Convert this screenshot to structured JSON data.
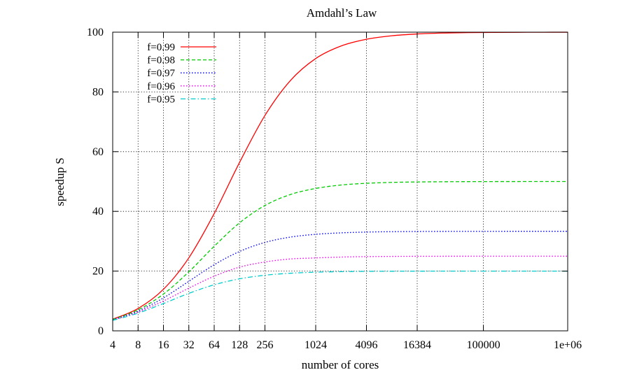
{
  "chart_data": {
    "type": "line",
    "title": "Amdahl’s Law",
    "xlabel": "number of cores",
    "ylabel": "speedup S",
    "x_scale": "log2",
    "xlim": [
      4,
      1000000
    ],
    "ylim": [
      0,
      100
    ],
    "grid": true,
    "legend_position": "top-left",
    "x_ticks": [
      {
        "value": 4,
        "label": "4"
      },
      {
        "value": 8,
        "label": "8"
      },
      {
        "value": 16,
        "label": "16"
      },
      {
        "value": 32,
        "label": "32"
      },
      {
        "value": 64,
        "label": "64"
      },
      {
        "value": 128,
        "label": "128"
      },
      {
        "value": 256,
        "label": "256"
      },
      {
        "value": 1024,
        "label": "1024"
      },
      {
        "value": 4096,
        "label": "4096"
      },
      {
        "value": 16384,
        "label": "16384"
      },
      {
        "value": 100000,
        "label": "100000"
      },
      {
        "value": 1000000,
        "label": "1e+06"
      }
    ],
    "y_ticks": [
      {
        "value": 0,
        "label": "0"
      },
      {
        "value": 20,
        "label": "20"
      },
      {
        "value": 40,
        "label": "40"
      },
      {
        "value": 60,
        "label": "60"
      },
      {
        "value": 80,
        "label": "80"
      },
      {
        "value": 100,
        "label": "100"
      }
    ],
    "x": [
      4,
      8,
      16,
      32,
      64,
      128,
      256,
      512,
      1024,
      2048,
      4096,
      8192,
      16384,
      32768,
      65536,
      131072,
      262144,
      524288,
      1000000
    ],
    "series": [
      {
        "name": "f=0.99",
        "color": "#ff0000",
        "dash": "solid",
        "values": [
          3.88,
          7.48,
          13.91,
          24.43,
          39.26,
          56.39,
          72.11,
          83.78,
          91.18,
          95.38,
          97.63,
          98.8,
          99.4,
          99.7,
          99.85,
          99.92,
          99.96,
          99.98,
          99.99
        ]
      },
      {
        "name": "f=0.98",
        "color": "#00cc00",
        "dash": "dashed",
        "values": [
          3.77,
          7.02,
          12.31,
          19.75,
          28.32,
          36.16,
          41.97,
          45.63,
          47.68,
          48.82,
          49.4,
          49.7,
          49.85,
          49.92,
          49.96,
          49.98,
          49.99,
          50.0,
          50.0
        ]
      },
      {
        "name": "f=0.97",
        "color": "#0000ee",
        "dash": "dotted",
        "values": [
          3.67,
          6.61,
          11.03,
          16.58,
          22.14,
          26.57,
          29.6,
          31.38,
          32.32,
          32.81,
          33.07,
          33.2,
          33.27,
          33.3,
          33.32,
          33.32,
          33.33,
          33.33,
          33.33
        ]
      },
      {
        "name": "f=0.96",
        "color": "#ee00ee",
        "dash": "dotted",
        "values": [
          3.57,
          6.25,
          10.0,
          14.29,
          18.29,
          21.33,
          23.05,
          24.06,
          24.41,
          24.7,
          24.85,
          24.92,
          24.96,
          24.98,
          24.99,
          25.0,
          25.0,
          25.0,
          25.0
        ]
      },
      {
        "name": "f=0.95",
        "color": "#00cccc",
        "dash": "dashdot",
        "values": [
          3.48,
          5.93,
          9.14,
          12.55,
          15.42,
          17.41,
          18.62,
          19.28,
          19.64,
          19.81,
          19.91,
          19.95,
          19.98,
          19.99,
          19.99,
          20.0,
          20.0,
          20.0,
          20.0
        ]
      }
    ]
  }
}
